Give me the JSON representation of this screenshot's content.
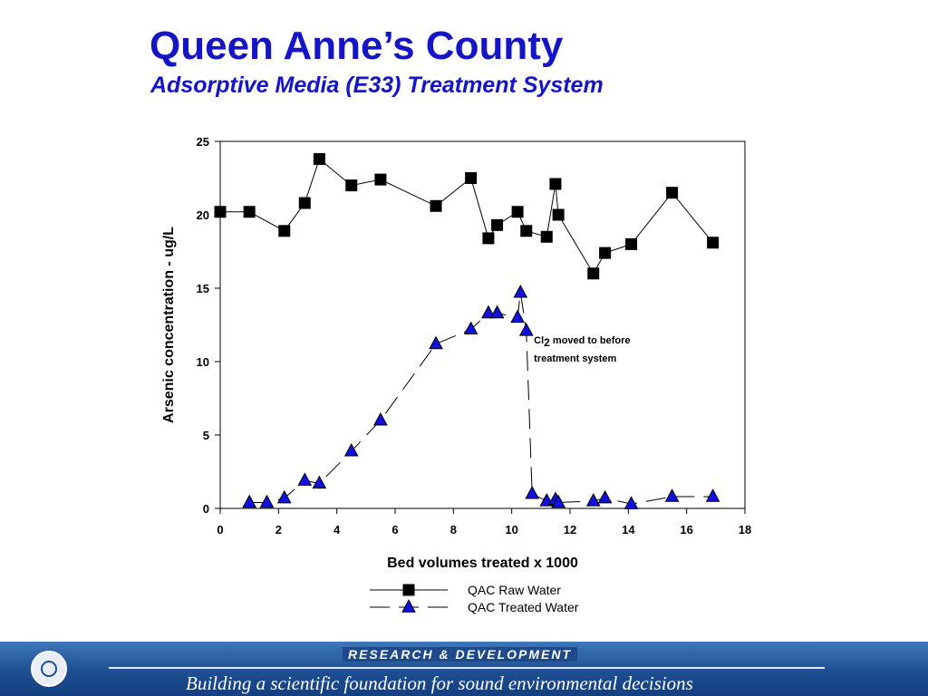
{
  "slide": {
    "title": "Queen Anne’s County",
    "subtitle": "Adsorptive Media (E33) Treatment System"
  },
  "footer": {
    "research_label": "RESEARCH &  DEVELOPMENT",
    "tagline": "Building a scientific foundation for sound environmental decisions"
  },
  "chart_data": {
    "type": "line",
    "xlabel": "Bed volumes treated x 1000",
    "ylabel": "Arsenic concentration - ug/L",
    "xlim": [
      0,
      18
    ],
    "ylim": [
      0,
      25
    ],
    "x_ticks": [
      0,
      2,
      4,
      6,
      8,
      10,
      12,
      14,
      16,
      18
    ],
    "y_ticks": [
      0,
      5,
      10,
      15,
      20,
      25
    ],
    "grid": false,
    "legend_placement": "bottom-center",
    "series": [
      {
        "name": "QAC Raw Water",
        "marker": "square",
        "line_style": "solid",
        "marker_color": "#000000",
        "x": [
          0,
          1.0,
          2.2,
          2.9,
          3.4,
          4.5,
          5.5,
          7.4,
          8.6,
          9.2,
          9.5,
          10.2,
          10.5,
          11.2,
          11.5,
          11.6,
          12.8,
          13.2,
          14.1,
          15.5,
          16.9
        ],
        "y": [
          20.2,
          20.2,
          18.9,
          20.8,
          23.8,
          22.0,
          22.4,
          20.6,
          22.5,
          18.4,
          19.3,
          20.2,
          18.9,
          18.5,
          22.1,
          20.0,
          16.0,
          17.4,
          18.0,
          21.5,
          18.1
        ]
      },
      {
        "name": "QAC Treated Water",
        "marker": "triangle",
        "line_style": "dashed",
        "marker_color": "#1010e0",
        "x": [
          1.0,
          1.6,
          2.2,
          2.9,
          3.4,
          4.5,
          5.5,
          7.4,
          8.6,
          9.2,
          9.5,
          10.2,
          10.3,
          10.5,
          10.7,
          11.2,
          11.5,
          11.6,
          12.8,
          13.2,
          14.1,
          15.5,
          16.9
        ],
        "y": [
          0.4,
          0.4,
          0.7,
          1.9,
          1.7,
          3.9,
          6.0,
          11.2,
          12.2,
          13.3,
          13.3,
          13.0,
          14.7,
          12.1,
          1.0,
          0.5,
          0.6,
          0.4,
          0.5,
          0.7,
          0.3,
          0.8,
          0.8
        ]
      }
    ],
    "annotations": [
      {
        "text": "Cl",
        "subscript": "2",
        "text_after": " moved to before",
        "line2": "treatment system",
        "x": 10.7,
        "y": 10.5
      }
    ]
  }
}
